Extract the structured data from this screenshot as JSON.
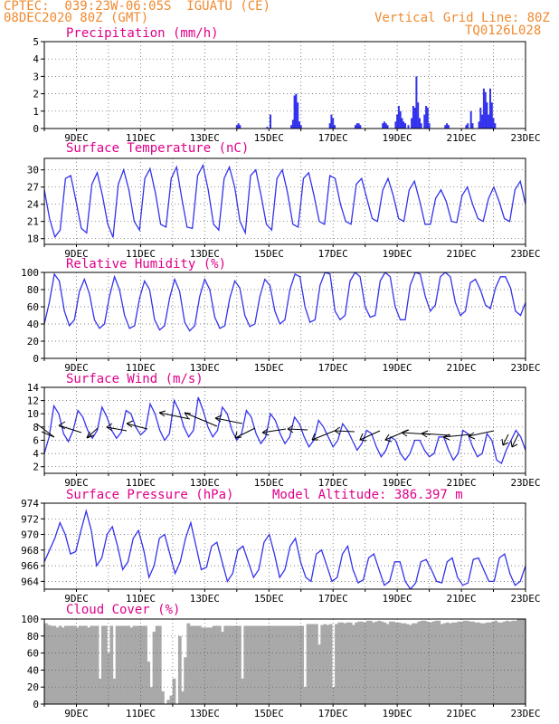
{
  "header": {
    "line1": "CPTEC:  039:23W-06:05S  IGUATU (CE)",
    "line2": "08DEC2020 80Z (GMT)",
    "grid_note": "Vertical Grid Line: 80Z",
    "code": "TQ0126L028"
  },
  "x_axis": {
    "labels": [
      "9DEC",
      "11DEC",
      "13DEC",
      "15DEC",
      "17DEC",
      "19DEC",
      "21DEC",
      "23DEC"
    ],
    "label_days": [
      1,
      3,
      5,
      7,
      9,
      11,
      13,
      15
    ],
    "range_days": [
      0,
      15
    ]
  },
  "colors": {
    "line": "#3333ee",
    "bar": "#3333ee",
    "cloud": "#a9a9a9",
    "title": "#e0008a",
    "header": "#f08a30"
  },
  "chart_data": [
    {
      "type": "bar",
      "title": "Precipitation (mm/h)",
      "ylim": [
        0,
        5
      ],
      "yticks": [
        0,
        1,
        2,
        3,
        4,
        5
      ],
      "points": [
        [
          6.0,
          0.2
        ],
        [
          6.05,
          0.3
        ],
        [
          6.1,
          0.2
        ],
        [
          6.95,
          0.1
        ],
        [
          7.05,
          0.8
        ],
        [
          7.7,
          0.2
        ],
        [
          7.75,
          0.5
        ],
        [
          7.8,
          1.9
        ],
        [
          7.85,
          2.0
        ],
        [
          7.9,
          1.5
        ],
        [
          7.95,
          0.4
        ],
        [
          8.0,
          0.2
        ],
        [
          8.9,
          0.3
        ],
        [
          8.95,
          0.8
        ],
        [
          9.0,
          0.6
        ],
        [
          9.05,
          0.2
        ],
        [
          9.7,
          0.2
        ],
        [
          9.75,
          0.3
        ],
        [
          9.8,
          0.3
        ],
        [
          9.85,
          0.2
        ],
        [
          10.55,
          0.3
        ],
        [
          10.6,
          0.4
        ],
        [
          10.65,
          0.3
        ],
        [
          10.7,
          0.2
        ],
        [
          10.95,
          0.4
        ],
        [
          11.0,
          0.8
        ],
        [
          11.05,
          1.3
        ],
        [
          11.1,
          1.0
        ],
        [
          11.15,
          0.6
        ],
        [
          11.2,
          0.4
        ],
        [
          11.25,
          0.3
        ],
        [
          11.35,
          0.2
        ],
        [
          11.45,
          0.6
        ],
        [
          11.5,
          1.3
        ],
        [
          11.55,
          1.2
        ],
        [
          11.6,
          3.0
        ],
        [
          11.65,
          1.5
        ],
        [
          11.7,
          0.6
        ],
        [
          11.75,
          0.3
        ],
        [
          11.85,
          0.8
        ],
        [
          11.9,
          1.3
        ],
        [
          11.95,
          1.2
        ],
        [
          12.0,
          0.3
        ],
        [
          12.5,
          0.2
        ],
        [
          12.55,
          0.3
        ],
        [
          12.6,
          0.2
        ],
        [
          13.15,
          0.2
        ],
        [
          13.2,
          0.3
        ],
        [
          13.3,
          1.0
        ],
        [
          13.35,
          0.3
        ],
        [
          13.55,
          0.4
        ],
        [
          13.6,
          1.2
        ],
        [
          13.65,
          0.8
        ],
        [
          13.7,
          2.3
        ],
        [
          13.75,
          2.1
        ],
        [
          13.8,
          1.5
        ],
        [
          13.85,
          0.8
        ],
        [
          13.9,
          2.3
        ],
        [
          13.95,
          1.5
        ],
        [
          14.0,
          0.6
        ],
        [
          14.05,
          0.3
        ]
      ]
    },
    {
      "type": "line",
      "title": "Surface Temperature (nC)",
      "ylim": [
        17,
        32
      ],
      "yticks": [
        18,
        21,
        24,
        27,
        30
      ],
      "values": [
        26.5,
        21.5,
        18.3,
        19.5,
        28.5,
        29.0,
        24.5,
        19.8,
        19.0,
        27.5,
        29.5,
        25.5,
        20.5,
        18.2,
        27.5,
        30.0,
        26.5,
        21.0,
        19.5,
        28.5,
        30.2,
        26.0,
        20.5,
        20.0,
        28.5,
        30.5,
        25.0,
        20.0,
        19.8,
        29.0,
        30.8,
        26.5,
        20.5,
        19.5,
        28.5,
        30.5,
        27.0,
        21.0,
        19.0,
        29.0,
        30.0,
        25.5,
        20.5,
        19.5,
        28.5,
        30.0,
        26.0,
        20.5,
        20.0,
        28.5,
        29.5,
        25.5,
        21.0,
        20.5,
        29.0,
        28.5,
        24.0,
        21.0,
        20.5,
        27.5,
        28.5,
        25.0,
        21.5,
        21.0,
        26.5,
        28.5,
        25.5,
        21.5,
        21.0,
        26.5,
        28.0,
        24.5,
        20.5,
        20.5,
        25.0,
        26.5,
        24.5,
        21.0,
        20.8,
        25.5,
        27.0,
        24.0,
        21.5,
        21.0,
        25.0,
        27.0,
        24.5,
        21.5,
        21.0,
        26.5,
        28.0,
        24.0
      ]
    },
    {
      "type": "line",
      "title": "Relative Humidity (%)",
      "ylim": [
        0,
        100
      ],
      "yticks": [
        0,
        20,
        40,
        60,
        80,
        100
      ],
      "values": [
        40,
        65,
        98,
        90,
        55,
        38,
        45,
        78,
        92,
        75,
        45,
        35,
        40,
        72,
        95,
        80,
        50,
        35,
        38,
        70,
        90,
        80,
        45,
        33,
        38,
        70,
        92,
        78,
        42,
        32,
        38,
        72,
        92,
        80,
        48,
        35,
        38,
        70,
        90,
        82,
        50,
        37,
        40,
        72,
        92,
        85,
        55,
        40,
        45,
        80,
        98,
        95,
        60,
        42,
        45,
        85,
        100,
        98,
        55,
        45,
        50,
        90,
        100,
        95,
        60,
        48,
        50,
        90,
        100,
        95,
        60,
        45,
        45,
        85,
        100,
        98,
        72,
        55,
        62,
        95,
        100,
        95,
        65,
        50,
        55,
        88,
        92,
        80,
        62,
        58,
        82,
        95,
        95,
        82,
        55,
        50,
        65
      ]
    },
    {
      "type": "line",
      "title": "Surface Wind (m/s)",
      "ylim": [
        1,
        14
      ],
      "yticks": [
        2,
        4,
        6,
        8,
        10,
        12,
        14
      ],
      "values": [
        4.0,
        6.5,
        11.2,
        10.0,
        7.0,
        5.8,
        7.5,
        10.5,
        9.5,
        7.5,
        6.3,
        7.5,
        11.0,
        9.5,
        7.5,
        6.3,
        7.2,
        10.5,
        10.0,
        8.0,
        6.8,
        7.5,
        11.5,
        10.0,
        7.5,
        6.0,
        7.0,
        12.0,
        10.5,
        8.0,
        6.5,
        7.5,
        12.5,
        10.5,
        8.0,
        6.5,
        7.5,
        11.0,
        10.0,
        7.5,
        6.0,
        7.0,
        10.5,
        9.5,
        7.0,
        5.5,
        6.5,
        10.0,
        9.0,
        7.0,
        5.5,
        6.5,
        9.5,
        8.5,
        6.5,
        5.0,
        6.0,
        9.0,
        8.0,
        6.5,
        5.0,
        6.0,
        8.5,
        7.5,
        6.0,
        4.5,
        5.5,
        7.5,
        7.0,
        5.0,
        3.5,
        4.5,
        6.5,
        6.0,
        4.0,
        3.0,
        4.0,
        6.0,
        6.0,
        4.5,
        3.5,
        4.0,
        6.5,
        6.5,
        4.5,
        3.0,
        4.0,
        7.5,
        7.0,
        5.0,
        3.5,
        4.0,
        7.0,
        6.0,
        3.0,
        2.5,
        4.5,
        6.0,
        7.5,
        6.5,
        4.5
      ]
    },
    {
      "type": "line",
      "title": "Surface Pressure (hPa)",
      "annotation": "Model Altitude: 386.397  m",
      "ylim": [
        963,
        974
      ],
      "yticks": [
        964,
        966,
        968,
        970,
        972,
        974
      ],
      "values": [
        966.5,
        968.0,
        969.5,
        971.5,
        970.0,
        967.5,
        967.8,
        970.5,
        973.0,
        970.5,
        966.0,
        967.0,
        970.0,
        971.0,
        968.5,
        965.5,
        966.5,
        969.5,
        970.5,
        968.0,
        964.5,
        966.0,
        969.5,
        970.0,
        967.5,
        965.0,
        966.5,
        969.5,
        971.5,
        968.5,
        965.5,
        965.8,
        968.5,
        969.0,
        966.5,
        964.0,
        965.0,
        968.0,
        968.5,
        966.5,
        964.5,
        965.5,
        969.0,
        970.0,
        967.5,
        964.5,
        965.5,
        968.5,
        969.5,
        966.5,
        964.5,
        964.0,
        967.5,
        968.0,
        966.0,
        964.0,
        964.5,
        967.5,
        968.5,
        965.5,
        963.8,
        964.2,
        967.0,
        967.5,
        965.5,
        963.5,
        964.0,
        966.5,
        966.5,
        964.0,
        963.0,
        963.8,
        966.5,
        966.8,
        965.5,
        964.0,
        963.8,
        966.5,
        967.0,
        964.5,
        963.5,
        963.8,
        966.8,
        967.0,
        965.5,
        964.0,
        964.0,
        967.0,
        967.5,
        965.0,
        963.5,
        964.0,
        966.0
      ]
    },
    {
      "type": "area",
      "title": "Cloud Cover (%)",
      "ylim": [
        0,
        100
      ],
      "yticks": [
        0,
        20,
        40,
        60,
        80,
        100
      ],
      "values": [
        95,
        93,
        92,
        92,
        90,
        92,
        90,
        92,
        92,
        92,
        92,
        90,
        92,
        92,
        92,
        90,
        92,
        92,
        92,
        30,
        92,
        92,
        60,
        92,
        30,
        92,
        92,
        92,
        92,
        92,
        90,
        92,
        92,
        92,
        92,
        92,
        50,
        20,
        85,
        92,
        92,
        15,
        0,
        5,
        10,
        30,
        0,
        80,
        15,
        55,
        95,
        92,
        92,
        92,
        92,
        90,
        90,
        90,
        90,
        92,
        92,
        92,
        85,
        92,
        92,
        92,
        92,
        92,
        92,
        30,
        92,
        92,
        92,
        92,
        92,
        92,
        92,
        92,
        92,
        92,
        92,
        92,
        92,
        92,
        92,
        92,
        92,
        92,
        92,
        92,
        92,
        20,
        94,
        94,
        94,
        94,
        70,
        93,
        94,
        93,
        94,
        20,
        94,
        96,
        96,
        95,
        96,
        96,
        93,
        96,
        97,
        97,
        96,
        98,
        98,
        96,
        97,
        98,
        97,
        96,
        94,
        97,
        97,
        96,
        96,
        95,
        95,
        94,
        93,
        95,
        95,
        97,
        98,
        98,
        97,
        96,
        97,
        98,
        98,
        94,
        95,
        96,
        95,
        96,
        96,
        97,
        97,
        98,
        98,
        97,
        97,
        96,
        96,
        95,
        95,
        96,
        96,
        97,
        98,
        96,
        96,
        97,
        98,
        97,
        98,
        98,
        100,
        100,
        100
      ]
    }
  ]
}
